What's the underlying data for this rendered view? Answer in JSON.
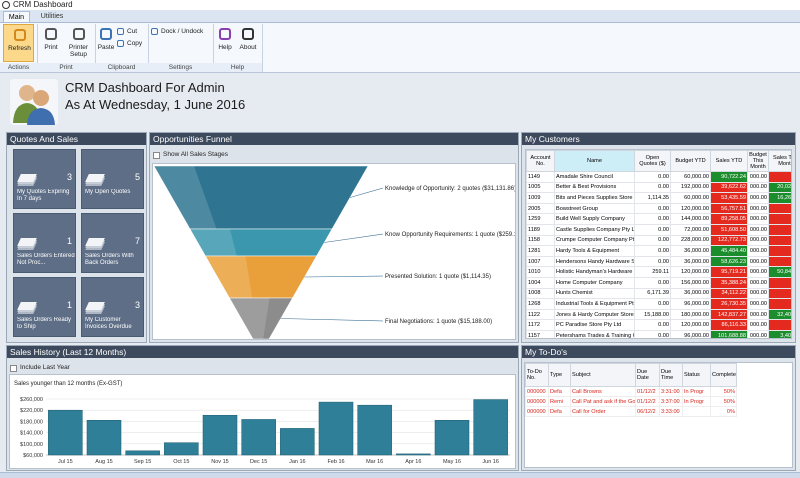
{
  "window": {
    "title": "CRM Dashboard",
    "tabs": [
      "Main",
      "Utilities"
    ]
  },
  "ribbon": {
    "groups": [
      {
        "label": "Actions",
        "buttons": [
          "Refresh"
        ]
      },
      {
        "label": "Print",
        "buttons": [
          "Print",
          "Printer Setup"
        ]
      },
      {
        "label": "Clipboard",
        "buttons": [
          "Paste",
          "Cut",
          "Copy"
        ]
      },
      {
        "label": "Settings",
        "buttons": [
          "Dock / Undock"
        ]
      },
      {
        "label": "Help",
        "buttons": [
          "Help",
          "About"
        ]
      }
    ]
  },
  "header": {
    "title": "CRM Dashboard For Admin",
    "date": "As At Wednesday, 1 June 2016"
  },
  "quotes": {
    "title": "Quotes And Sales",
    "tiles": [
      {
        "label": "My Quotes Expiring In 7 days",
        "count": 3
      },
      {
        "label": "My Open Quotes",
        "count": 5
      },
      {
        "label": "Sales Orders Entered Not Proc...",
        "count": 1
      },
      {
        "label": "Sales Orders With Back Orders",
        "count": 7
      },
      {
        "label": "Sales Orders Ready to Ship",
        "count": 1
      },
      {
        "label": "My Customer Invoices Overdue",
        "count": 3
      }
    ]
  },
  "funnel": {
    "title": "Opportunities Funnel",
    "checkbox": "Show All Sales Stages",
    "stages": [
      {
        "label": "Knowledge of Opportunity: 2 quotes ($31,131.86)",
        "color": "#2f7592"
      },
      {
        "label": "Know Opportunity Requirements: 1 quote ($259.11)",
        "color": "#3a97ad"
      },
      {
        "label": "Presented Solution: 1 quote ($1,114.35)",
        "color": "#e9a03a"
      },
      {
        "label": "Final Negotiations: 1 quote ($15,188.00)",
        "color": "#8c8c8c"
      }
    ]
  },
  "customers": {
    "title": "My Customers",
    "columns": [
      "Account No.",
      "Name",
      "Open Quotes ($)",
      "Budget YTD",
      "Sales YTD",
      "Budget This Month",
      "Sales This Month"
    ],
    "rows": [
      [
        "1149",
        "Amadale Shire Council",
        "0.00",
        "60,000.00",
        "90,722.24",
        "000.00",
        "0.00"
      ],
      [
        "1005",
        "Better & Best Provisions",
        "0.00",
        "192,000.00",
        "39,622.62",
        "000.00",
        "20,028.28"
      ],
      [
        "1009",
        "Bits and Pieces Supplies Store",
        "1,114.35",
        "60,000.00",
        "53,435.59",
        "000.00",
        "16,262.27"
      ],
      [
        "2005",
        "Bowstreet Group",
        "0.00",
        "120,000.00",
        "56,757.51",
        "000.00",
        "0.00"
      ],
      [
        "1259",
        "Build Well Supply Company",
        "0.00",
        "144,000.00",
        "89,258.05",
        "000.00",
        "0.00"
      ],
      [
        "1189",
        "Castle Supplies Company Pty Lt",
        "0.00",
        "72,000.00",
        "51,608.50",
        "000.00",
        "0.00"
      ],
      [
        "1158",
        "Crumpe Computer Company Pty",
        "0.00",
        "228,000.00",
        "122,772.73",
        "000.00",
        "0.00"
      ],
      [
        "1281",
        "Hardy Tools & Equipment",
        "0.00",
        "36,000.00",
        "45,484.40",
        "000.00",
        "0.00"
      ],
      [
        "1007",
        "Hendersons Handy Hardware S",
        "0.00",
        "36,000.00",
        "58,626.23",
        "000.00",
        "0.00"
      ],
      [
        "1010",
        "Holistic Handyman's Hardware",
        "259.11",
        "120,000.00",
        "95,719.21",
        "000.00",
        "50,843.98"
      ],
      [
        "1004",
        "Home Computer Company",
        "0.00",
        "156,000.00",
        "35,388.24",
        "000.00",
        "0.00"
      ],
      [
        "1008",
        "Hunts Chemist",
        "6,171.39",
        "36,000.00",
        "34,112.22",
        "000.00",
        "0.00"
      ],
      [
        "1268",
        "Industrial Tools & Equipment Pty",
        "0.00",
        "96,000.00",
        "26,730.35",
        "000.00",
        "0.00"
      ],
      [
        "1122",
        "Jones & Hardy Computer Store",
        "15,188.00",
        "180,000.00",
        "142,837.27",
        "000.00",
        "32,400.00"
      ],
      [
        "1172",
        "PC Paradise Store Pty Ltd",
        "0.00",
        "120,000.00",
        "86,116.33",
        "000.00",
        "0.00"
      ],
      [
        "1157",
        "Petershams Trades & Training C",
        "0.00",
        "96,000.00",
        "101,688.88",
        "000.00",
        "3,400.51"
      ]
    ]
  },
  "sales_history": {
    "title": "Sales History (Last 12 Months)",
    "checkbox": "Include Last Year"
  },
  "todos": {
    "title": "My To-Do's",
    "columns": [
      "To-Do No.",
      "Type",
      "Subject",
      "Due Date",
      "Due Time",
      "Status",
      "Complete"
    ],
    "rows": [
      [
        "000000",
        "Defa",
        "Call Browns",
        "01/12/2",
        "3:31:00",
        "In Progr",
        "50%"
      ],
      [
        "000000",
        "Remi",
        "Call Pat and ask if the Go",
        "01/12/2",
        "3:37:00",
        "In Progr",
        "50%"
      ],
      [
        "000000",
        "Defa",
        "Call for Order",
        "06/12/2",
        "3:33:00",
        "",
        "0%"
      ]
    ]
  },
  "chart_data": {
    "type": "bar",
    "title": "Sales younger than 12 months (Ex-GST)",
    "categories": [
      "Jul 15",
      "Aug 15",
      "Sep 15",
      "Oct 15",
      "Nov 15",
      "Dec 15",
      "Jan 16",
      "Feb 16",
      "Mar 16",
      "Apr 16",
      "May 16",
      "Jun 16"
    ],
    "values": [
      220000,
      184000,
      75000,
      104000,
      202000,
      187000,
      155000,
      249000,
      238000,
      64000,
      184000,
      258000
    ],
    "color": "#2e7f97",
    "ylim": [
      60000,
      260000
    ],
    "yticks": [
      {
        "value": 60000,
        "label": "$60,000"
      },
      {
        "value": 100000,
        "label": "$100,000"
      },
      {
        "value": 140000,
        "label": "$140,000"
      },
      {
        "value": 180000,
        "label": "$180,000"
      },
      {
        "value": 220000,
        "label": "$220,000"
      },
      {
        "value": 260000,
        "label": "$260,000"
      }
    ],
    "grid": true
  }
}
